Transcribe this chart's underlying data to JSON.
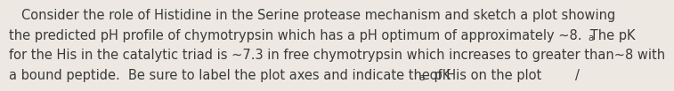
{
  "background_color": "#ede9e2",
  "text_color": "#3a3a3a",
  "fontsize": 10.5,
  "fontsize_sub": 7.5,
  "fontfamily": "sans-serif",
  "line1": "Consider the role of Histidine in the Serine protease mechanism and sketch a plot showing",
  "line2_pre": "the predicted pH profile of chymotrypsin which has a pH optimum of approximately ~8.  The pK",
  "line2_sub": "a",
  "line3": "for the His in the catalytic triad is ~7.3 in free chymotrypsin which increases to greater than~8 with",
  "line4_pre": "a bound peptide.  Be sure to label the plot axes and indicate the pK",
  "line4_sub": "a",
  "line4_post": " of His on the plot",
  "line4_end": "/"
}
